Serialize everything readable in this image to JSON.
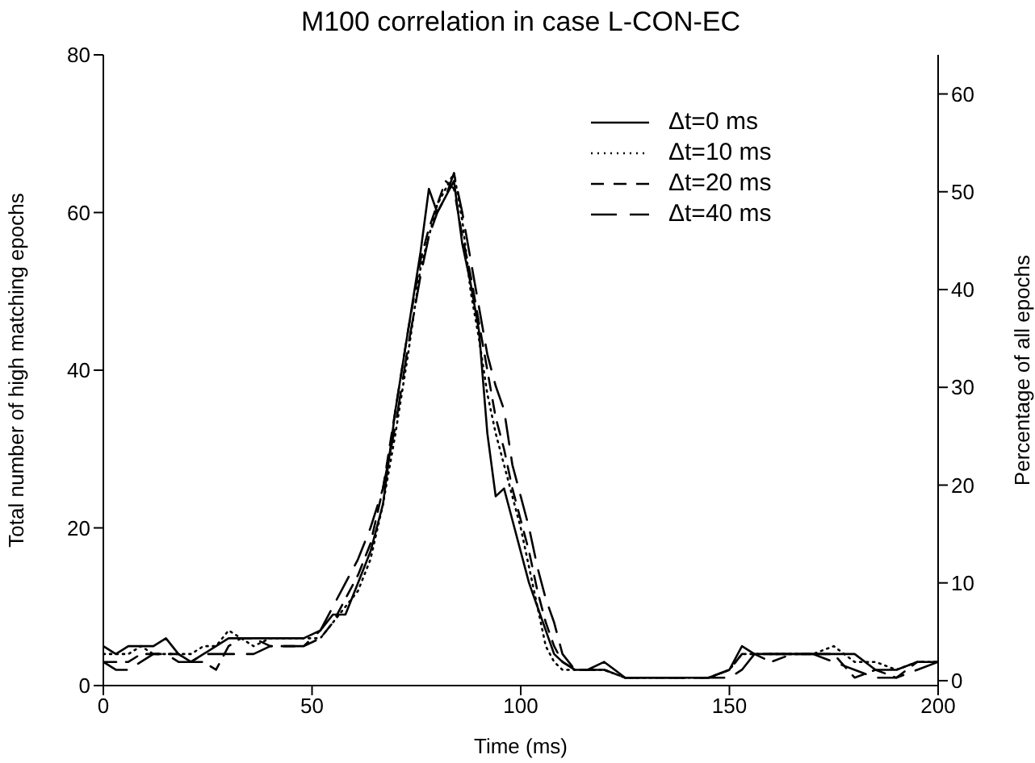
{
  "chart_data": {
    "type": "line",
    "title": "M100 correlation in case L-CON-EC",
    "xlabel": "Time (ms)",
    "ylabel": "Total number of high matching epochs",
    "y2label": "Percentage of all epochs",
    "x": [
      0,
      3,
      6,
      9,
      12,
      15,
      18,
      21,
      24,
      27,
      30,
      33,
      36,
      40,
      44,
      48,
      52,
      55,
      58,
      61,
      64,
      67,
      70,
      73,
      76,
      78,
      80,
      82,
      84,
      86,
      88,
      90,
      92,
      94,
      96,
      98,
      100,
      102,
      104,
      106,
      108,
      110,
      113,
      116,
      120,
      125,
      130,
      140,
      145,
      150,
      153,
      156,
      160,
      165,
      170,
      175,
      180,
      185,
      190,
      195,
      200
    ],
    "series": [
      {
        "name": "Δt=0 ms",
        "color": "#000000",
        "line_style": "solid",
        "values": [
          5,
          4,
          5,
          5,
          5,
          6,
          4,
          3,
          4,
          5,
          6,
          6,
          6,
          6,
          6,
          6,
          7,
          9,
          9,
          13,
          17,
          23,
          35,
          45,
          55,
          63,
          60,
          62,
          64,
          56,
          51,
          45,
          32,
          24,
          25,
          21,
          17,
          13,
          10,
          7,
          4,
          3,
          2,
          2,
          3,
          1,
          1,
          1,
          1,
          2,
          5,
          4,
          4,
          4,
          4,
          4,
          4,
          2,
          2,
          3,
          3
        ]
      },
      {
        "name": "Δt=10 ms",
        "color": "#000000",
        "line_style": "dotted",
        "values": [
          4,
          4,
          4,
          5,
          4,
          4,
          4,
          4,
          5,
          5,
          7,
          6,
          5,
          6,
          6,
          6,
          6,
          8,
          10,
          12,
          16,
          23,
          32,
          42,
          53,
          57,
          61,
          63,
          65,
          59,
          50,
          44,
          37,
          32,
          28,
          24,
          20,
          15,
          10,
          5,
          3,
          2,
          2,
          2,
          2,
          1,
          1,
          1,
          1,
          2,
          4,
          4,
          4,
          4,
          4,
          5,
          3,
          3,
          2,
          3,
          3
        ]
      },
      {
        "name": "Δt=20 ms",
        "color": "#000000",
        "line_style": "dashed",
        "values": [
          3,
          3,
          3,
          4,
          4,
          4,
          4,
          3,
          3,
          2,
          5,
          6,
          6,
          5,
          5,
          5,
          6,
          8,
          11,
          14,
          18,
          25,
          35,
          45,
          54,
          58,
          61,
          64,
          63,
          57,
          52,
          46,
          40,
          34,
          30,
          25,
          21,
          17,
          12,
          8,
          5,
          3,
          2,
          2,
          2,
          1,
          1,
          1,
          1,
          2,
          4,
          4,
          3,
          4,
          4,
          4,
          1,
          2,
          1,
          3,
          3
        ]
      },
      {
        "name": "Δt=40 ms",
        "color": "#000000",
        "line_style": "dashed",
        "values": [
          3,
          2,
          2,
          3,
          4,
          4,
          3,
          3,
          4,
          4,
          4,
          4,
          4,
          5,
          5,
          5,
          7,
          10,
          13,
          16,
          20,
          25,
          33,
          43,
          52,
          57,
          60,
          62,
          65,
          60,
          54,
          48,
          42,
          38,
          35,
          28,
          24,
          20,
          15,
          11,
          8,
          4,
          2,
          2,
          2,
          1,
          1,
          1,
          1,
          1,
          2,
          4,
          4,
          4,
          4,
          3,
          2,
          1,
          1,
          2,
          3
        ]
      }
    ],
    "xlim": [
      0,
      200
    ],
    "xticks": [
      0,
      50,
      100,
      150,
      200
    ],
    "ylim": [
      0,
      80
    ],
    "yticks": [
      0,
      20,
      40,
      60,
      80
    ],
    "y2lim": [
      -0.5,
      64
    ],
    "y2ticks": [
      0,
      10,
      20,
      30,
      40,
      50,
      60
    ],
    "legend": "top right",
    "marker": "none"
  }
}
